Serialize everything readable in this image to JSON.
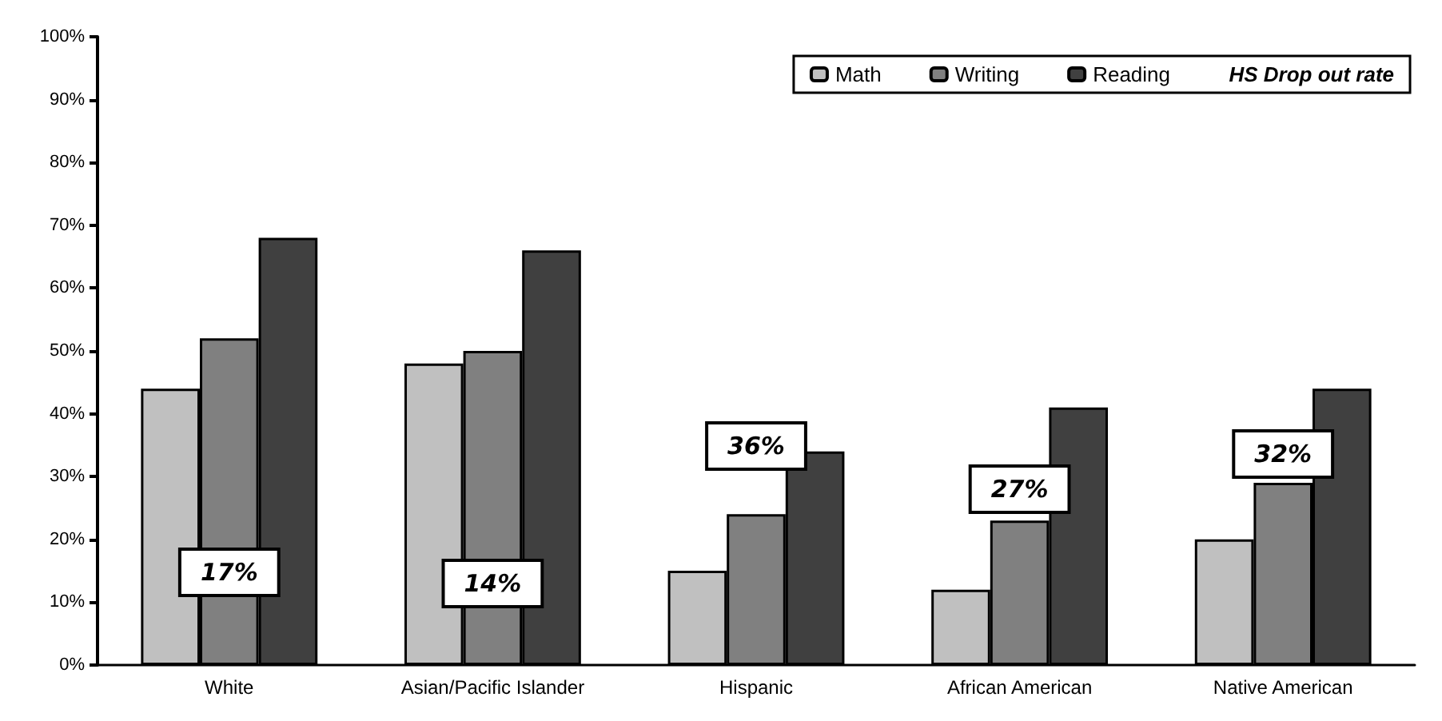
{
  "chart_data": {
    "type": "bar",
    "categories": [
      "White",
      "Asian/Pacific Islander",
      "Hispanic",
      "African American",
      "Native American"
    ],
    "series": [
      {
        "name": "Math",
        "color": "#c0c0c0",
        "values": [
          44,
          48,
          15,
          12,
          20
        ]
      },
      {
        "name": "Writing",
        "color": "#808080",
        "values": [
          52,
          50,
          24,
          23,
          29
        ]
      },
      {
        "name": "Reading",
        "color": "#404040",
        "values": [
          68,
          66,
          34,
          41,
          44
        ]
      }
    ],
    "legend_title": "HS Drop out rate",
    "legend": "top right",
    "ylim": [
      0,
      100
    ],
    "yticks": [
      {
        "value": 0,
        "label": "0%"
      },
      {
        "value": 10,
        "label": "10%"
      },
      {
        "value": 20,
        "label": "20%"
      },
      {
        "value": 30,
        "label": "30%"
      },
      {
        "value": 40,
        "label": "40%"
      },
      {
        "value": 50,
        "label": "50%"
      },
      {
        "value": 60,
        "label": "60%"
      },
      {
        "value": 70,
        "label": "70%"
      },
      {
        "value": 80,
        "label": "80%"
      },
      {
        "value": 90,
        "label": "90%"
      },
      {
        "value": 100,
        "label": "100%"
      }
    ],
    "annotations": [
      "17%",
      "14%",
      "36%",
      "27%",
      "32%"
    ]
  }
}
